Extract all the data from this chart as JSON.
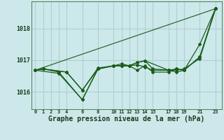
{
  "background_color": "#cce8ea",
  "line_color": "#1a5c1a",
  "grid_color": "#b0d0d2",
  "ylabel_ticks": [
    1016,
    1017,
    1018
  ],
  "xticks": [
    0,
    1,
    2,
    3,
    4,
    6,
    8,
    10,
    11,
    12,
    13,
    14,
    15,
    17,
    18,
    19,
    21,
    23
  ],
  "xlabel": "Graphe pression niveau de la mer (hPa)",
  "series": [
    {
      "x": [
        0,
        1,
        3,
        6,
        8,
        10,
        11,
        12,
        13,
        14,
        15,
        17,
        18,
        19,
        21,
        23
      ],
      "y": [
        1016.68,
        1016.72,
        1016.62,
        1015.75,
        1016.72,
        1016.82,
        1016.82,
        1016.82,
        1016.85,
        1016.78,
        1016.68,
        1016.68,
        1016.68,
        1016.72,
        1017.05,
        1018.62
      ]
    },
    {
      "x": [
        0,
        1,
        4,
        6,
        8,
        10,
        11,
        12,
        13,
        14,
        15,
        17,
        18,
        19,
        21,
        23
      ],
      "y": [
        1016.68,
        1016.72,
        1016.62,
        1016.05,
        1016.75,
        1016.82,
        1016.82,
        1016.82,
        1016.68,
        1016.82,
        1016.62,
        1016.62,
        1016.72,
        1016.68,
        1017.1,
        1018.62
      ]
    },
    {
      "x": [
        0,
        3,
        6,
        8,
        10,
        11,
        12,
        13,
        14,
        15,
        17,
        18,
        19,
        21,
        23
      ],
      "y": [
        1016.68,
        1016.58,
        1015.75,
        1016.72,
        1016.82,
        1016.88,
        1016.82,
        1016.92,
        1016.98,
        1016.72,
        1016.68,
        1016.62,
        1016.68,
        1017.5,
        1018.62
      ]
    },
    {
      "x": [
        0,
        1,
        4,
        6,
        8,
        10,
        11,
        12,
        13,
        14,
        17,
        18,
        19,
        21,
        23
      ],
      "y": [
        1016.68,
        1016.72,
        1016.62,
        1016.05,
        1016.72,
        1016.82,
        1016.82,
        1016.82,
        1016.92,
        1016.98,
        1016.68,
        1016.72,
        1016.68,
        1017.1,
        1018.62
      ]
    },
    {
      "x": [
        0,
        23
      ],
      "y": [
        1016.68,
        1018.62
      ]
    }
  ],
  "ylim": [
    1015.45,
    1018.85
  ],
  "xlim": [
    -0.5,
    23.8
  ],
  "ytick_fontsize": 6,
  "xtick_fontsize": 5,
  "xlabel_fontsize": 7
}
